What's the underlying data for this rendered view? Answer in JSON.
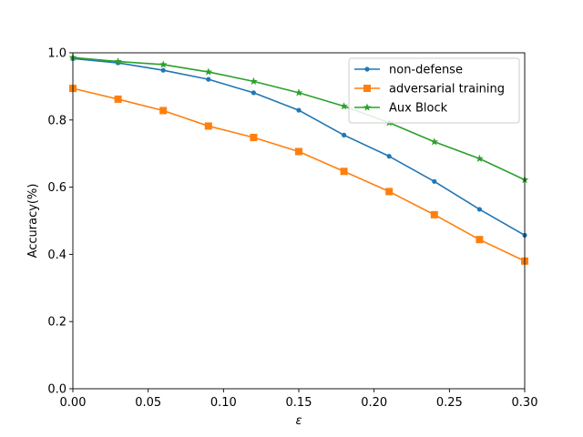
{
  "chart_data": {
    "type": "line",
    "xlabel": "ε",
    "ylabel": "Accuracy(%)",
    "xlim": [
      0.0,
      0.3
    ],
    "ylim": [
      0.0,
      1.0
    ],
    "xticks": [
      "0.00",
      "0.05",
      "0.10",
      "0.15",
      "0.20",
      "0.25",
      "0.30"
    ],
    "yticks": [
      "0.0",
      "0.2",
      "0.4",
      "0.6",
      "0.8",
      "1.0"
    ],
    "grid": false,
    "legend_position": "top-right",
    "x": [
      0.0,
      0.03,
      0.06,
      0.09,
      0.12,
      0.15,
      0.18,
      0.21,
      0.24,
      0.27,
      0.3
    ],
    "series": [
      {
        "name": "non-defense",
        "color": "#1f77b4",
        "marker": "circle",
        "values": [
          0.983,
          0.97,
          0.948,
          0.921,
          0.881,
          0.829,
          0.755,
          0.692,
          0.617,
          0.534,
          0.457
        ]
      },
      {
        "name": "adversarial training",
        "color": "#ff7f0e",
        "marker": "square",
        "values": [
          0.894,
          0.862,
          0.828,
          0.782,
          0.748,
          0.706,
          0.647,
          0.587,
          0.518,
          0.444,
          0.38
        ]
      },
      {
        "name": "Aux Block",
        "color": "#2ca02c",
        "marker": "star",
        "values": [
          0.986,
          0.974,
          0.965,
          0.943,
          0.915,
          0.881,
          0.841,
          0.792,
          0.735,
          0.685,
          0.622
        ]
      }
    ]
  }
}
